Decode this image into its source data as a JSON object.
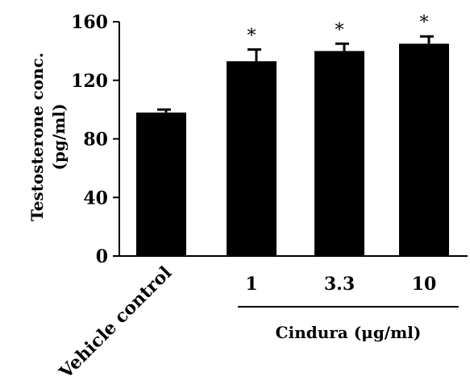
{
  "chart_data": {
    "type": "bar",
    "categories": [
      "Vehicle control",
      "1",
      "3.3",
      "10"
    ],
    "values": [
      98,
      133,
      140,
      145
    ],
    "errors": [
      2,
      8,
      5,
      5
    ],
    "significance": [
      "",
      "*",
      "*",
      "*"
    ],
    "ylabel_line1": "Testosterone conc.",
    "ylabel_line2": "(pg/ml)",
    "group_label": "Cindura (μg/ml)",
    "ylim": [
      0,
      160
    ],
    "yticks": [
      0,
      40,
      80,
      120,
      160
    ],
    "bar_color": "#000000",
    "grid": false
  }
}
